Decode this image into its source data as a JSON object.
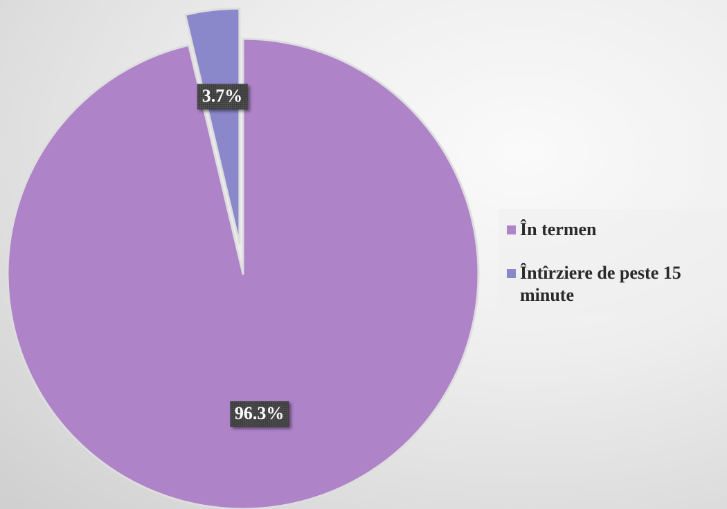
{
  "chart_data": {
    "type": "pie",
    "title": "",
    "categories": [
      "În termen",
      "Întîrziere de peste 15 minute"
    ],
    "values": [
      96.3,
      3.7
    ],
    "data_labels": [
      "96.3%",
      "3.7%"
    ],
    "exploded": [
      false,
      true
    ],
    "legend_position": "right",
    "start_angle": "12 o'clock",
    "direction": "clockwise"
  },
  "colors": {
    "slices": [
      "#ae83c8",
      "#8b87cb"
    ],
    "slice_border": "#dedede",
    "label_background": "#3b3b3b",
    "label_text": "#ffffff",
    "legend_text": "#2a2a2a"
  },
  "legend": {
    "items": [
      {
        "label": "În termen"
      },
      {
        "label": "Întîrziere de peste 15 minute"
      }
    ]
  }
}
